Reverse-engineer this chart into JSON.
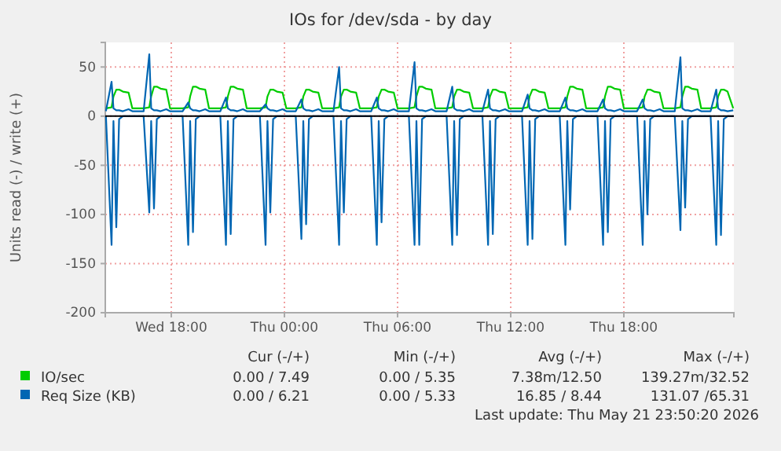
{
  "chart_data": {
    "type": "line",
    "title": "IOs for /dev/sda - by day",
    "ylabel": "Units read (-) / write (+)",
    "x": [
      "2026-05-20T14:32",
      "2026-05-20T14:50",
      "2026-05-20T14:56",
      "2026-05-20T15:05",
      "2026-05-20T15:14",
      "2026-05-20T15:26",
      "2026-05-20T15:44",
      "2026-05-20T15:56",
      "2026-05-20T16:32",
      "2026-05-20T16:50",
      "2026-05-20T16:56",
      "2026-05-20T17:05",
      "2026-05-20T17:14",
      "2026-05-20T17:26",
      "2026-05-20T17:44",
      "2026-05-20T17:56",
      "2026-05-20T18:36",
      "2026-05-20T18:54",
      "2026-05-20T19:00",
      "2026-05-20T19:09",
      "2026-05-20T19:18",
      "2026-05-20T19:30",
      "2026-05-20T19:48",
      "2026-05-20T20:00",
      "2026-05-20T20:36",
      "2026-05-20T20:54",
      "2026-05-20T21:00",
      "2026-05-20T21:09",
      "2026-05-20T21:18",
      "2026-05-20T21:30",
      "2026-05-20T21:48",
      "2026-05-20T22:00",
      "2026-05-20T22:42",
      "2026-05-20T23:00",
      "2026-05-20T23:06",
      "2026-05-20T23:15",
      "2026-05-20T23:24",
      "2026-05-20T23:36",
      "2026-05-20T23:54",
      "2026-05-21T00:06",
      "2026-05-21T00:36",
      "2026-05-21T00:54",
      "2026-05-21T01:00",
      "2026-05-21T01:09",
      "2026-05-21T01:18",
      "2026-05-21T01:30",
      "2026-05-21T01:48",
      "2026-05-21T02:00",
      "2026-05-21T02:36",
      "2026-05-21T02:54",
      "2026-05-21T03:00",
      "2026-05-21T03:09",
      "2026-05-21T03:18",
      "2026-05-21T03:30",
      "2026-05-21T03:48",
      "2026-05-21T04:00",
      "2026-05-21T04:36",
      "2026-05-21T04:54",
      "2026-05-21T05:00",
      "2026-05-21T05:09",
      "2026-05-21T05:18",
      "2026-05-21T05:30",
      "2026-05-21T05:48",
      "2026-05-21T06:00",
      "2026-05-21T06:36",
      "2026-05-21T06:54",
      "2026-05-21T07:00",
      "2026-05-21T07:09",
      "2026-05-21T07:18",
      "2026-05-21T07:30",
      "2026-05-21T07:48",
      "2026-05-21T08:00",
      "2026-05-21T08:36",
      "2026-05-21T08:54",
      "2026-05-21T09:00",
      "2026-05-21T09:09",
      "2026-05-21T09:18",
      "2026-05-21T09:30",
      "2026-05-21T09:48",
      "2026-05-21T10:00",
      "2026-05-21T10:30",
      "2026-05-21T10:48",
      "2026-05-21T10:54",
      "2026-05-21T11:03",
      "2026-05-21T11:12",
      "2026-05-21T11:24",
      "2026-05-21T11:42",
      "2026-05-21T11:54",
      "2026-05-21T12:36",
      "2026-05-21T12:54",
      "2026-05-21T13:00",
      "2026-05-21T13:09",
      "2026-05-21T13:18",
      "2026-05-21T13:30",
      "2026-05-21T13:48",
      "2026-05-21T14:00",
      "2026-05-21T14:36",
      "2026-05-21T14:54",
      "2026-05-21T15:00",
      "2026-05-21T15:09",
      "2026-05-21T15:18",
      "2026-05-21T15:30",
      "2026-05-21T15:48",
      "2026-05-21T16:00",
      "2026-05-21T16:36",
      "2026-05-21T16:54",
      "2026-05-21T17:00",
      "2026-05-21T17:09",
      "2026-05-21T17:18",
      "2026-05-21T17:30",
      "2026-05-21T17:48",
      "2026-05-21T18:00",
      "2026-05-21T18:42",
      "2026-05-21T19:00",
      "2026-05-21T19:06",
      "2026-05-21T19:15",
      "2026-05-21T19:24",
      "2026-05-21T19:36",
      "2026-05-21T19:54",
      "2026-05-21T20:06",
      "2026-05-21T20:42",
      "2026-05-21T21:00",
      "2026-05-21T21:06",
      "2026-05-21T21:15",
      "2026-05-21T21:24",
      "2026-05-21T21:36",
      "2026-05-21T21:54",
      "2026-05-21T22:06",
      "2026-05-21T22:36",
      "2026-05-21T22:54",
      "2026-05-21T23:00",
      "2026-05-21T23:09",
      "2026-05-21T23:18",
      "2026-05-21T23:30",
      "2026-05-21T23:48"
    ],
    "series": [
      {
        "name": "IO/sec",
        "color": "#00cc00",
        "values": [
          8,
          9,
          20,
          27,
          27,
          25,
          24,
          8,
          8,
          9,
          20,
          30,
          30,
          28,
          27,
          8,
          8,
          9,
          20,
          30,
          30,
          28,
          27,
          8,
          8,
          9,
          20,
          30,
          30,
          28,
          27,
          8,
          8,
          9,
          20,
          27,
          27,
          25,
          24,
          8,
          8,
          9,
          20,
          27,
          27,
          25,
          24,
          8,
          8,
          9,
          20,
          27,
          27,
          25,
          24,
          8,
          8,
          9,
          20,
          27,
          27,
          25,
          24,
          8,
          8,
          9,
          20,
          30,
          30,
          28,
          27,
          8,
          8,
          9,
          20,
          27,
          27,
          25,
          24,
          8,
          8,
          9,
          20,
          27,
          27,
          25,
          24,
          8,
          8,
          9,
          20,
          27,
          27,
          25,
          24,
          8,
          8,
          9,
          20,
          30,
          30,
          28,
          27,
          8,
          8,
          9,
          20,
          30,
          30,
          28,
          27,
          8,
          8,
          9,
          20,
          27,
          27,
          25,
          24,
          8,
          8,
          9,
          20,
          30,
          30,
          28,
          27,
          8,
          8,
          9,
          20,
          27,
          27,
          25,
          8
        ]
      },
      {
        "name": "Req Size (KB)",
        "color": "#0066b3",
        "values": [
          5,
          35,
          8,
          6,
          6,
          5,
          7,
          5,
          5,
          63,
          8,
          6,
          6,
          5,
          7,
          5,
          5,
          14,
          8,
          6,
          6,
          5,
          7,
          5,
          5,
          19,
          8,
          6,
          6,
          5,
          7,
          5,
          5,
          12,
          8,
          6,
          6,
          5,
          7,
          5,
          5,
          17,
          8,
          6,
          6,
          5,
          7,
          5,
          5,
          50,
          8,
          6,
          6,
          5,
          7,
          5,
          5,
          19,
          8,
          6,
          6,
          5,
          7,
          5,
          5,
          55,
          8,
          6,
          6,
          5,
          7,
          5,
          5,
          30,
          8,
          6,
          6,
          5,
          7,
          5,
          5,
          27,
          8,
          6,
          6,
          5,
          7,
          5,
          5,
          22,
          8,
          6,
          6,
          5,
          7,
          5,
          5,
          19,
          8,
          6,
          6,
          5,
          7,
          5,
          5,
          17,
          8,
          6,
          6,
          5,
          7,
          5,
          5,
          17,
          8,
          6,
          6,
          5,
          7,
          5,
          5,
          60,
          8,
          6,
          6,
          5,
          7,
          5,
          5,
          27,
          8,
          6,
          6,
          5,
          6
        ]
      },
      {
        "color": "#0066b3",
        "values": [
          0,
          -131,
          -5,
          -113,
          -3,
          0,
          0,
          0,
          0,
          -98,
          -5,
          -94,
          -3,
          0,
          0,
          0,
          0,
          -131,
          -5,
          -118,
          -3,
          0,
          0,
          0,
          0,
          -131,
          -5,
          -120,
          -3,
          0,
          0,
          0,
          0,
          -131,
          -5,
          -98,
          -3,
          0,
          0,
          0,
          0,
          -125,
          -5,
          -110,
          -3,
          0,
          0,
          0,
          0,
          -131,
          -5,
          -98,
          -3,
          0,
          0,
          0,
          0,
          -131,
          -5,
          -108,
          -3,
          0,
          0,
          0,
          0,
          -131,
          -5,
          -131,
          -3,
          0,
          0,
          0,
          0,
          -131,
          -5,
          -121,
          -3,
          0,
          0,
          0,
          0,
          -131,
          -5,
          -120,
          -3,
          0,
          0,
          0,
          0,
          -131,
          -5,
          -125,
          -3,
          0,
          0,
          0,
          0,
          -131,
          -5,
          -95,
          -3,
          0,
          0,
          0,
          0,
          -131,
          -5,
          -118,
          -3,
          0,
          0,
          0,
          0,
          -131,
          -5,
          -100,
          -3,
          0,
          0,
          0,
          0,
          -116,
          -5,
          -93,
          -3,
          0,
          0,
          0,
          0,
          -131,
          -5,
          -121,
          -3,
          0,
          0
        ]
      }
    ],
    "xlim": [
      "2026-05-20T14:30",
      "2026-05-21T23:50"
    ],
    "ylim": [
      -200,
      75
    ],
    "xticks": [
      {
        "value": "2026-05-20T18:00",
        "label": "Wed 18:00"
      },
      {
        "value": "2026-05-21T00:00",
        "label": "Thu 00:00"
      },
      {
        "value": "2026-05-21T06:00",
        "label": "Thu 06:00"
      },
      {
        "value": "2026-05-21T12:00",
        "label": "Thu 12:00"
      },
      {
        "value": "2026-05-21T18:00",
        "label": "Thu 18:00"
      }
    ],
    "yticks": [
      -200,
      -150,
      -100,
      -50,
      0,
      50
    ],
    "grid": true,
    "legend": "bottom",
    "marker": "none",
    "line_style": "solid",
    "annotations": [
      "Cur (-/+)",
      "Min (-/+)",
      "Avg (-/+)",
      "Max (-/+)",
      "0.00 / 7.49",
      "0.00 / 5.35",
      "7.38m/12.50",
      "139.27m/32.52",
      "0.00 / 6.21",
      "0.00 / 5.33",
      "16.85 / 8.44",
      "131.07 /65.31",
      "Last update: Thu May 21 23:50:20 2026"
    ]
  }
}
